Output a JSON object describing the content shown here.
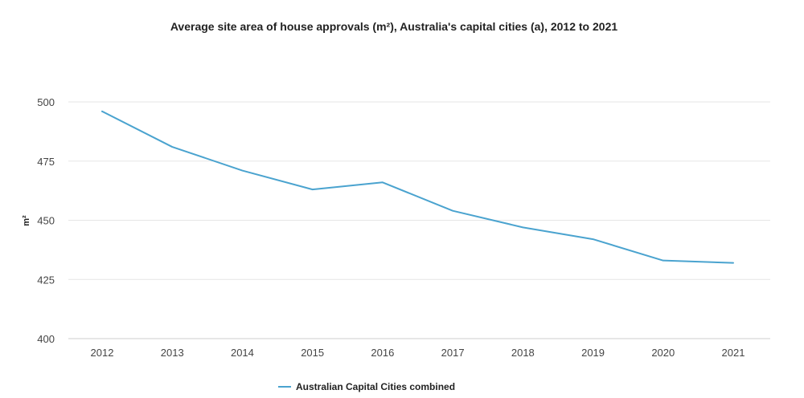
{
  "chart_data": {
    "type": "line",
    "title": "Average site area of house approvals (m²), Australia's capital cities (a), 2012 to 2021",
    "xlabel": "",
    "ylabel": "m²",
    "categories": [
      "2012",
      "2013",
      "2014",
      "2015",
      "2016",
      "2017",
      "2018",
      "2019",
      "2020",
      "2021"
    ],
    "series": [
      {
        "name": "Australian Capital Cities combined",
        "values": [
          496,
          481,
          471,
          463,
          466,
          454,
          447,
          442,
          433,
          432
        ],
        "color": "#4aa3cf"
      }
    ],
    "ylim": [
      400,
      500
    ],
    "yticks": [
      "400",
      "425",
      "450",
      "475",
      "500"
    ],
    "grid": true,
    "legend_position": "bottom-center"
  }
}
